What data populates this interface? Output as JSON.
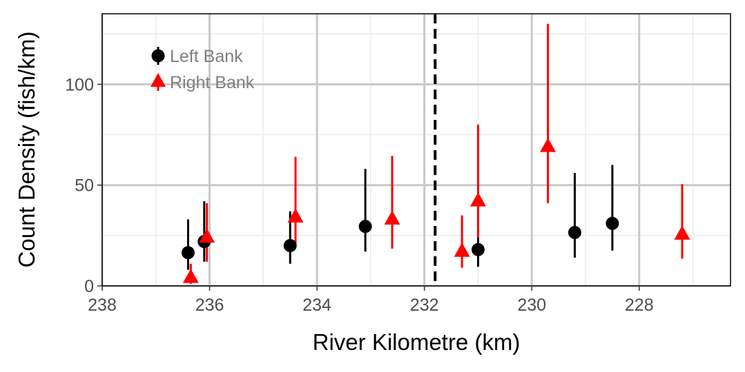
{
  "chart_data": {
    "type": "scatter",
    "title": "",
    "xlabel": "River Kilometre (km)",
    "ylabel": "Count Density (fish/km)",
    "x_reversed": true,
    "xlim": [
      238,
      226.3
    ],
    "ylim": [
      0,
      135
    ],
    "x_ticks": [
      238,
      236,
      234,
      232,
      230,
      228
    ],
    "y_ticks": [
      0,
      50,
      100
    ],
    "grid": true,
    "legend_position": "top-left",
    "reference_line": {
      "x": 231.8,
      "style": "dashed"
    },
    "series": [
      {
        "name": "Left Bank",
        "color": "#000000",
        "marker": "circle",
        "points": [
          {
            "x": 236.4,
            "y": 16.5,
            "low": 8,
            "high": 33
          },
          {
            "x": 236.1,
            "y": 22,
            "low": 12,
            "high": 42
          },
          {
            "x": 234.5,
            "y": 20,
            "low": 11,
            "high": 37
          },
          {
            "x": 233.1,
            "y": 29.5,
            "low": 17,
            "high": 58
          },
          {
            "x": 231.0,
            "y": 18,
            "low": 9.5,
            "high": 38
          },
          {
            "x": 229.2,
            "y": 26.5,
            "low": 14,
            "high": 56
          },
          {
            "x": 228.5,
            "y": 31,
            "low": 17.5,
            "high": 60
          }
        ]
      },
      {
        "name": "Right Bank",
        "color": "#ff0000",
        "marker": "triangle",
        "points": [
          {
            "x": 236.35,
            "y": 4,
            "low": 1,
            "high": 11
          },
          {
            "x": 236.05,
            "y": 24,
            "low": 12,
            "high": 41
          },
          {
            "x": 234.4,
            "y": 34,
            "low": 21,
            "high": 64
          },
          {
            "x": 232.6,
            "y": 33,
            "low": 18.5,
            "high": 64.5
          },
          {
            "x": 231.3,
            "y": 17,
            "low": 9,
            "high": 35
          },
          {
            "x": 231.0,
            "y": 42,
            "low": 24,
            "high": 80
          },
          {
            "x": 229.7,
            "y": 69,
            "low": 41,
            "high": 130
          },
          {
            "x": 227.2,
            "y": 25.5,
            "low": 13.5,
            "high": 50.5
          }
        ]
      }
    ]
  }
}
